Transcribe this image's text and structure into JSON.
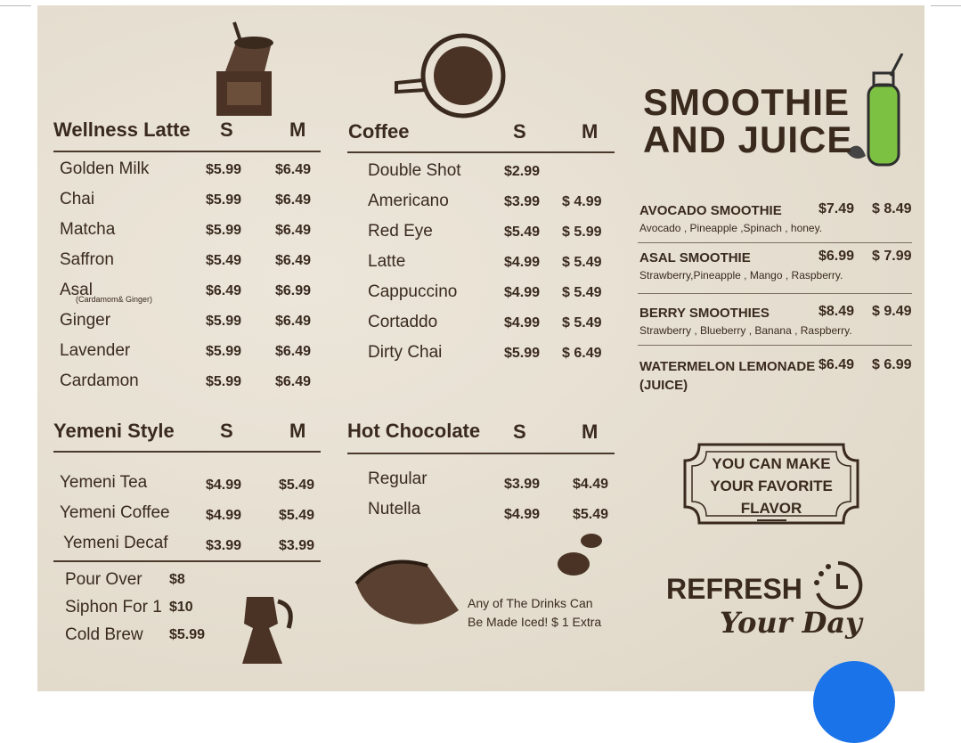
{
  "wellness": {
    "title": "Wellness Latte",
    "s": "S",
    "m": "M",
    "items": [
      {
        "name": "Golden Milk",
        "s": "$5.99",
        "m": "$6.49"
      },
      {
        "name": "Chai",
        "s": "$5.99",
        "m": "$6.49"
      },
      {
        "name": "Matcha",
        "s": "$5.99",
        "m": "$6.49"
      },
      {
        "name": "Saffron",
        "s": "$5.49",
        "m": "$6.49"
      },
      {
        "name": "Asal",
        "note": "(Cardamom& Ginger)",
        "s": "$6.49",
        "m": "$6.99"
      },
      {
        "name": "Ginger",
        "s": "$5.99",
        "m": "$6.49"
      },
      {
        "name": "Lavender",
        "s": "$5.99",
        "m": "$6.49"
      },
      {
        "name": "Cardamon",
        "s": "$5.99",
        "m": "$6.49"
      }
    ]
  },
  "yemeni": {
    "title": "Yemeni Style",
    "s": "S",
    "m": "M",
    "items": [
      {
        "name": "Yemeni Tea",
        "s": "$4.99",
        "m": "$5.49"
      },
      {
        "name": "Yemeni Coffee",
        "s": "$4.99",
        "m": "$5.49"
      },
      {
        "name": "Yemeni Decaf",
        "s": "$3.99",
        "m": "$3.99"
      }
    ]
  },
  "extras": [
    {
      "name": "Pour Over",
      "price": "$8"
    },
    {
      "name": "Siphon For 1",
      "price": "$10"
    },
    {
      "name": "Cold Brew",
      "price": "$5.99"
    }
  ],
  "coffee": {
    "title": "Coffee",
    "s": "S",
    "m": "M",
    "items": [
      {
        "name": "Double Shot",
        "s": "$2.99",
        "m": ""
      },
      {
        "name": "Americano",
        "s": "$3.99",
        "m": "$ 4.99"
      },
      {
        "name": "Red Eye",
        "s": "$5.49",
        "m": "$ 5.99"
      },
      {
        "name": "Latte",
        "s": "$4.99",
        "m": "$ 5.49"
      },
      {
        "name": "Cappuccino",
        "s": "$4.99",
        "m": "$ 5.49"
      },
      {
        "name": "Cortaddo",
        "s": "$4.99",
        "m": "$ 5.49"
      },
      {
        "name": "Dirty Chai",
        "s": "$5.99",
        "m": "$ 6.49"
      }
    ]
  },
  "hot_chocolate": {
    "title": "Hot Chocolate",
    "s": "S",
    "m": "M",
    "items": [
      {
        "name": "Regular",
        "s": "$3.99",
        "m": "$4.49"
      },
      {
        "name": "Nutella",
        "s": "$4.99",
        "m": "$5.49"
      }
    ]
  },
  "iced_note": {
    "line1": "Any of The Drinks Can",
    "line2": "Be Made Iced! $ 1 Extra"
  },
  "smoothie": {
    "title1": "SMOOTHIE",
    "title2": "AND JUICE",
    "items": [
      {
        "name": "AVOCADO SMOOTHIE",
        "desc": "Avocado , Pineapple ,Spinach , honey.",
        "s": "$7.49",
        "m": "$ 8.49"
      },
      {
        "name": "ASAL SMOOTHIE",
        "desc": "Strawberry,Pineapple , Mango , Raspberry.",
        "s": "$6.99",
        "m": "$ 7.99"
      },
      {
        "name": "BERRY SMOOTHIES",
        "desc": "Strawberry , Blueberry , Banana , Raspberry.",
        "s": "$8.49",
        "m": "$ 9.49"
      },
      {
        "name": "WATERMELON LEMONADE",
        "desc": "(JUICE)",
        "s": "$6.49",
        "m": "$ 6.99"
      }
    ]
  },
  "badge": {
    "line1": "YOU CAN MAKE",
    "line2": "YOUR FAVORITE",
    "line3": "FLAVOR"
  },
  "slogan": {
    "line1": "REFRESH",
    "line2": "Your Day"
  },
  "colors": {
    "paper": "#e6dfd2",
    "ink": "#3a2a1e",
    "juice": "#7dc142",
    "fab": "#1a73e8"
  }
}
